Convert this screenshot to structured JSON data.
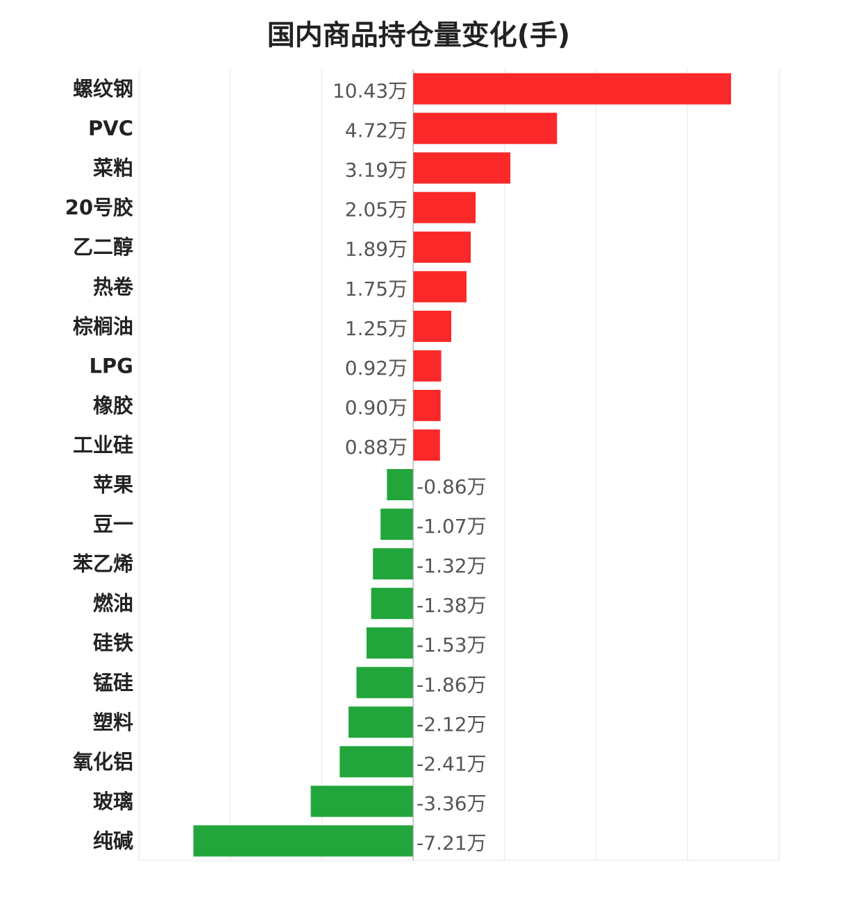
{
  "chart_data": {
    "type": "bar",
    "orientation": "horizontal",
    "title": "国内商品持仓量变化(手)",
    "unit_suffix": "万",
    "categories": [
      "螺纹钢",
      "PVC",
      "菜粕",
      "20号胶",
      "乙二醇",
      "热卷",
      "棕榈油",
      "LPG",
      "橡胶",
      "工业硅",
      "苹果",
      "豆一",
      "苯乙烯",
      "燃油",
      "硅铁",
      "锰硅",
      "塑料",
      "氧化铝",
      "玻璃",
      "纯碱"
    ],
    "values": [
      10.43,
      4.72,
      3.19,
      2.05,
      1.89,
      1.75,
      1.25,
      0.92,
      0.9,
      0.88,
      -0.86,
      -1.07,
      -1.32,
      -1.38,
      -1.53,
      -1.86,
      -2.12,
      -2.41,
      -3.36,
      -7.21
    ],
    "value_labels": [
      "10.43万",
      "4.72万",
      "3.19万",
      "2.05万",
      "1.89万",
      "1.75万",
      "1.25万",
      "0.92万",
      "0.90万",
      "0.88万",
      "-0.86万",
      "-1.07万",
      "-1.32万",
      "-1.38万",
      "-1.53万",
      "-1.86万",
      "-2.12万",
      "-2.41万",
      "-3.36万",
      "-7.21万"
    ],
    "xlim": [
      -9,
      12
    ],
    "grid_step": 3,
    "grid": true,
    "legend": "none",
    "colors": {
      "positive": "#fa2828",
      "negative": "#22a63c"
    }
  }
}
